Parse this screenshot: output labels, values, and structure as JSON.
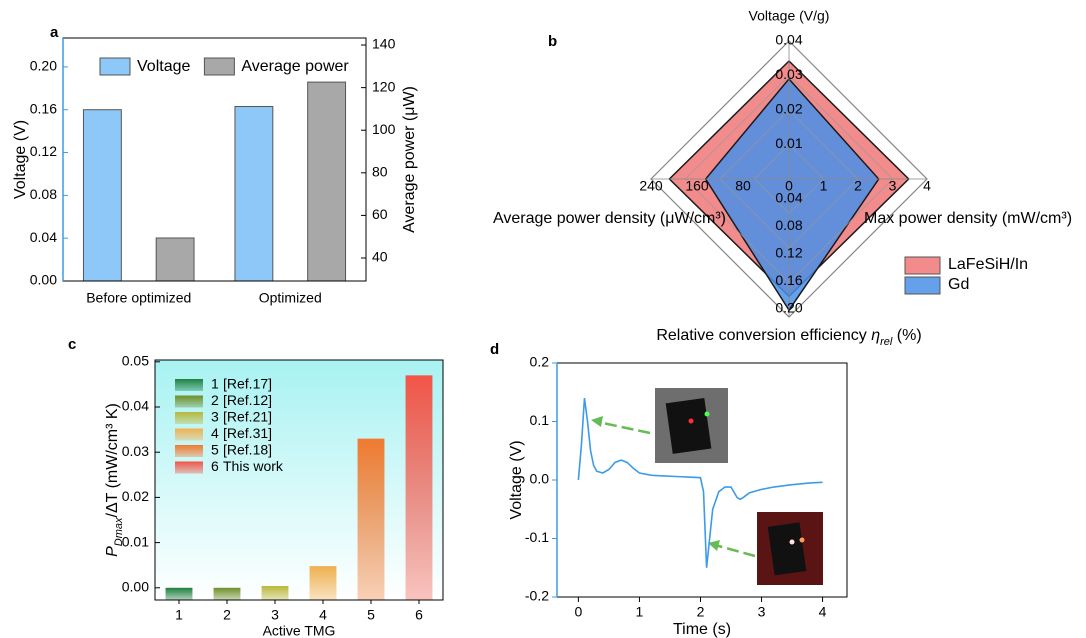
{
  "chart_data": [
    {
      "type": "bar",
      "panel": "a",
      "categories": [
        "Before optimized",
        "Optimized"
      ],
      "series": [
        {
          "name": "Voltage",
          "color": "#8ec8f8",
          "values": [
            0.16,
            0.163
          ]
        },
        {
          "name": "Average power",
          "color": "#a8a8a8",
          "values": [
            49.4,
            122.6
          ],
          "axis": "y2"
        }
      ],
      "y_label": "Voltage (V)",
      "y2_label": "Average power (μW)",
      "yaxis_color": "#3c9be8",
      "ylim": [
        0,
        0.227
      ],
      "yticks": [
        {
          "value": 0,
          "label": "0.00"
        },
        0.04,
        0.08,
        0.12,
        0.16,
        {
          "value": 0.2,
          "label": "0.20"
        }
      ],
      "y2lim": [
        29.2,
        143.3
      ],
      "y2ticks": [
        40,
        60,
        80,
        100,
        120,
        140
      ],
      "legend": "top"
    },
    {
      "type": "radar",
      "panel": "b",
      "axes": [
        {
          "label": "Voltage (V/g)",
          "lim": [
            0,
            0.04
          ],
          "ticks": [
            0.01,
            0.02,
            0.03,
            0.04
          ]
        },
        {
          "label": "Max power density (mW/cm³)",
          "lim": [
            0,
            4
          ],
          "ticks": [
            1,
            2,
            3,
            4
          ]
        },
        {
          "label": [
            "Relative conversion efficiency ",
            "η",
            "rel",
            " (%)"
          ],
          "lim": [
            0,
            0.2
          ],
          "ticks": [
            0.04,
            0.08,
            0.12,
            0.16,
            {
              "value": 0.2,
              "label": "0.20"
            }
          ]
        },
        {
          "label": "Average power density (μW/cm³)",
          "lim": [
            0,
            240
          ],
          "ticks": [
            0,
            80,
            160,
            240
          ]
        }
      ],
      "series": [
        {
          "name": "LaFeSiH/In",
          "color": "#f07878",
          "values": [
            0.0342,
            3.47,
            0.17,
            208
          ]
        },
        {
          "name": "Gd",
          "color": "#4a8fe8",
          "values": [
            0.029,
            2.6,
            0.19,
            145
          ]
        }
      ],
      "legend": "lower right"
    },
    {
      "type": "bar",
      "panel": "c",
      "categories": [
        "1",
        "2",
        "3",
        "4",
        "5",
        "6"
      ],
      "values": [
        0,
        0,
        0.0004,
        0.0048,
        0.033,
        0.047
      ],
      "colors": [
        "#1e8040",
        "#6f8f2a",
        "#b8b83a",
        "#f0b050",
        "#f07a30",
        "#f25548"
      ],
      "legend_names": [
        "[Ref.17]",
        "[Ref.12]",
        "[Ref.21]",
        "[Ref.31]",
        "[Ref.18]",
        "This work"
      ],
      "legend_text_colors": [
        "#000000",
        "#000000",
        "#000000",
        "#000000",
        "#000000",
        "#e8403a"
      ],
      "y_label": [
        "P",
        "Dmax",
        "/ΔT (mW/cm³ K)"
      ],
      "x_label": "Active TMG",
      "ylim": [
        -0.0027,
        0.0504
      ],
      "yticks": [
        {
          "value": 0,
          "label": "0.00"
        },
        0.01,
        0.02,
        0.03,
        0.04,
        0.05
      ],
      "background": "#a8f2f2",
      "legend": "upper left"
    },
    {
      "type": "line",
      "panel": "d",
      "x": [
        0,
        0.05,
        0.1,
        0.15,
        0.2,
        0.25,
        0.3,
        0.4,
        0.5,
        0.6,
        0.7,
        0.8,
        0.9,
        1.0,
        1.2,
        1.4,
        1.6,
        1.8,
        2.0,
        2.05,
        2.1,
        2.15,
        2.2,
        2.3,
        2.4,
        2.5,
        2.6,
        2.65,
        2.7,
        2.8,
        3.0,
        3.2,
        3.5,
        3.8,
        4.0
      ],
      "values": [
        0.0,
        0.06,
        0.14,
        0.1,
        0.05,
        0.025,
        0.015,
        0.012,
        0.018,
        0.03,
        0.034,
        0.03,
        0.02,
        0.012,
        0.008,
        0.007,
        0.006,
        0.005,
        0.004,
        -0.02,
        -0.15,
        -0.1,
        -0.05,
        -0.02,
        -0.012,
        -0.012,
        -0.03,
        -0.033,
        -0.03,
        -0.022,
        -0.016,
        -0.012,
        -0.008,
        -0.005,
        -0.004
      ],
      "color": "#3c9be8",
      "x_label": "Time (s)",
      "y_label": "Voltage (V)",
      "yaxis_color": "#3c9be8",
      "xlim": [
        -0.35,
        4.4
      ],
      "xticks": [
        0,
        1,
        2,
        3,
        4
      ],
      "ylim": [
        -0.2,
        0.2
      ],
      "yticks": [
        -0.2,
        -0.1,
        {
          "value": 0,
          "label": "0.0"
        },
        0.1,
        0.2
      ]
    }
  ]
}
